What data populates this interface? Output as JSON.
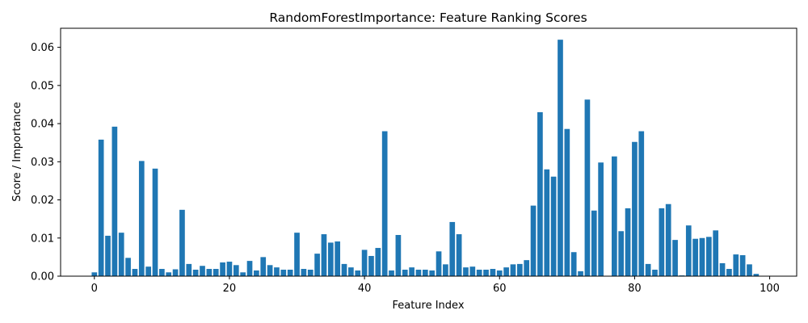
{
  "chart_data": {
    "type": "bar",
    "title": "RandomForestImportance: Feature Ranking Scores",
    "xlabel": "Feature Index",
    "ylabel": "Score / Importance",
    "xlim": [
      -5,
      104
    ],
    "ylim": [
      0,
      0.065
    ],
    "xticks": [
      0,
      20,
      40,
      60,
      80,
      100
    ],
    "yticks": [
      0.0,
      0.01,
      0.02,
      0.03,
      0.04,
      0.05,
      0.06
    ],
    "ytick_labels": [
      "0.00",
      "0.01",
      "0.02",
      "0.03",
      "0.04",
      "0.05",
      "0.06"
    ],
    "grid": false,
    "bar_color": "#1f77b4",
    "x": [
      0,
      1,
      2,
      3,
      4,
      5,
      6,
      7,
      8,
      9,
      10,
      11,
      12,
      13,
      14,
      15,
      16,
      17,
      18,
      19,
      20,
      21,
      22,
      23,
      24,
      25,
      26,
      27,
      28,
      29,
      30,
      31,
      32,
      33,
      34,
      35,
      36,
      37,
      38,
      39,
      40,
      41,
      42,
      43,
      44,
      45,
      46,
      47,
      48,
      49,
      50,
      51,
      52,
      53,
      54,
      55,
      56,
      57,
      58,
      59,
      60,
      61,
      62,
      63,
      64,
      65,
      66,
      67,
      68,
      69,
      70,
      71,
      72,
      73,
      74,
      75,
      76,
      77,
      78,
      79,
      80,
      81,
      82,
      83,
      84,
      85,
      86,
      87,
      88,
      89,
      90,
      91,
      92,
      93,
      94,
      95,
      96,
      97,
      98,
      99
    ],
    "values": [
      0.001,
      0.0358,
      0.0106,
      0.0392,
      0.0114,
      0.0048,
      0.0019,
      0.0302,
      0.0025,
      0.0282,
      0.0019,
      0.001,
      0.0018,
      0.0174,
      0.0032,
      0.0017,
      0.0027,
      0.0019,
      0.0019,
      0.0036,
      0.0038,
      0.0029,
      0.001,
      0.004,
      0.0015,
      0.005,
      0.0029,
      0.0023,
      0.0017,
      0.0017,
      0.0114,
      0.0019,
      0.0017,
      0.0059,
      0.011,
      0.0088,
      0.0091,
      0.0032,
      0.0023,
      0.0015,
      0.0069,
      0.0053,
      0.0074,
      0.038,
      0.0015,
      0.0108,
      0.0017,
      0.0023,
      0.0017,
      0.0017,
      0.0015,
      0.0065,
      0.0031,
      0.0142,
      0.011,
      0.0023,
      0.0025,
      0.0017,
      0.0017,
      0.0019,
      0.0015,
      0.0023,
      0.0031,
      0.0032,
      0.0042,
      0.0185,
      0.043,
      0.028,
      0.0261,
      0.062,
      0.0386,
      0.0063,
      0.0013,
      0.0463,
      0.0172,
      0.0298,
      0.0,
      0.0314,
      0.0118,
      0.0178,
      0.0352,
      0.038,
      0.0032,
      0.0017,
      0.0178,
      0.0189,
      0.0095,
      0.0002,
      0.0133,
      0.0098,
      0.01,
      0.0103,
      0.012,
      0.0034,
      0.0019,
      0.0057,
      0.0055,
      0.0031,
      0.0006,
      0.0
    ]
  }
}
